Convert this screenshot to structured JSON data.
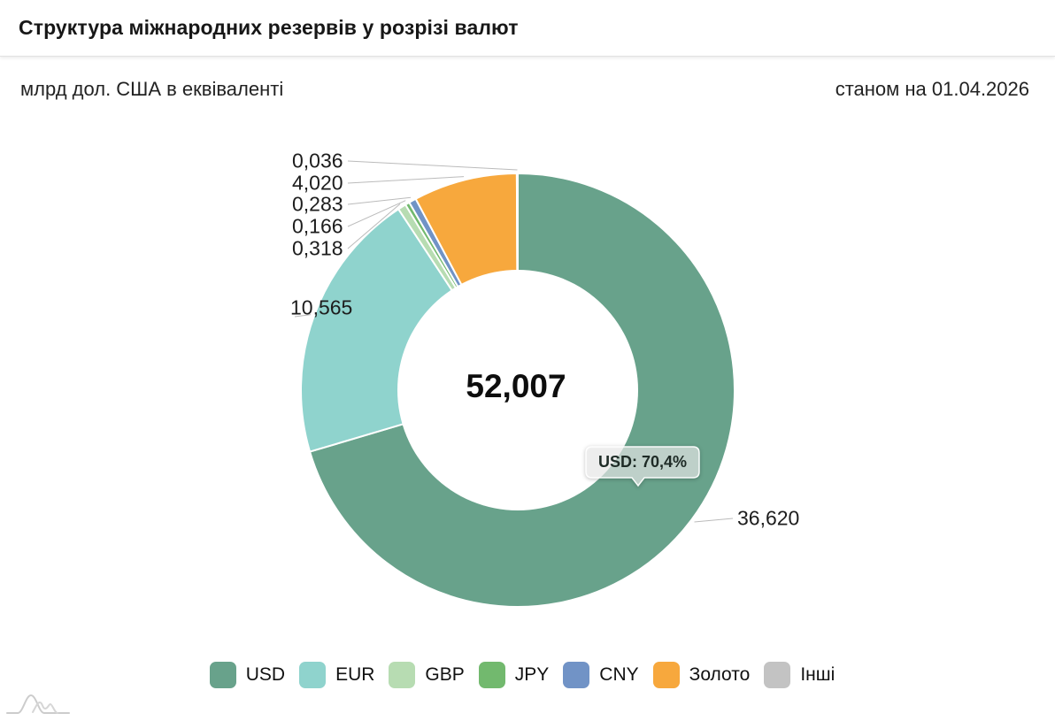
{
  "header": {
    "title": "Структура міжнародних резервів у розрізі валют"
  },
  "subheader": {
    "unit_label": "млрд дол. США в еквіваленті",
    "as_of": "станом на 01.04.2026"
  },
  "chart_data": {
    "type": "pie",
    "donut": true,
    "title": "Структура міжнародних резервів у розрізі валют",
    "unit": "млрд дол. США в еквіваленті",
    "as_of": "станом на 01.04.2026",
    "categories": [
      "USD",
      "EUR",
      "GBP",
      "JPY",
      "CNY",
      "Золото",
      "Інші"
    ],
    "values": [
      36.62,
      10.565,
      0.318,
      0.166,
      0.283,
      4.02,
      0.036
    ],
    "value_labels": [
      "36,620",
      "10,565",
      "0,318",
      "0,166",
      "0,283",
      "4,020",
      "0,036"
    ],
    "colors": [
      "#68a28b",
      "#8fd3cd",
      "#b7dcb2",
      "#72b96e",
      "#7193c6",
      "#f7a83d",
      "#c3c3c3"
    ],
    "center_total": "52,007",
    "tooltip_text": "USD: 70,4%",
    "legend_position": "bottom",
    "start_angle_deg": 0,
    "direction": "clockwise"
  }
}
